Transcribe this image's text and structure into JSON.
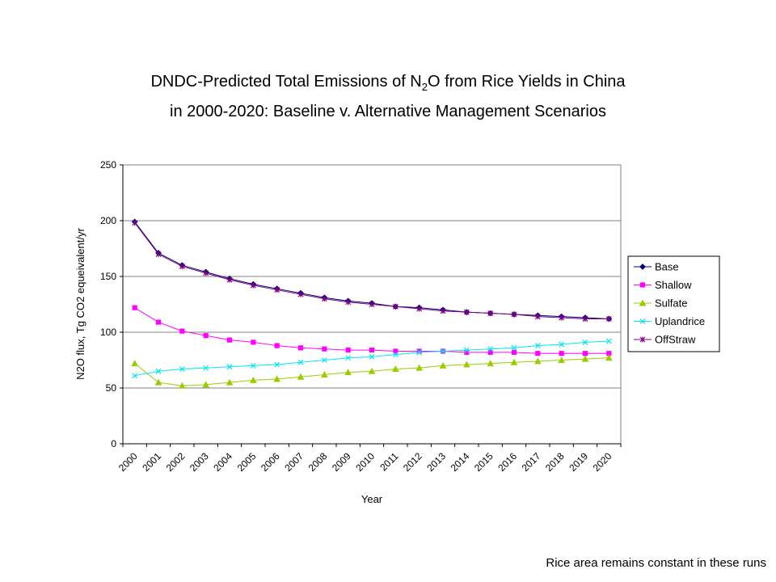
{
  "title": {
    "line1_before": "DNDC-Predicted Total Emissions of N",
    "line1_sub": "2",
    "line1_after": "O from Rice Yields in China",
    "line2": "in 2000-2020: Baseline v. Alternative Management Scenarios"
  },
  "footnote": "Rice area remains constant in these runs",
  "chart_data": {
    "type": "line",
    "title": "DNDC-Predicted Total Emissions of N2O from Rice Yields in China in 2000-2020: Baseline v. Alternative Management Scenarios",
    "xlabel": "Year",
    "ylabel": "N2O flux, Tg CO2 equeivalent/yr",
    "ylim": [
      0,
      250
    ],
    "yticks": [
      0,
      50,
      100,
      150,
      200,
      250
    ],
    "grid": true,
    "legend_position": "right",
    "categories": [
      "2000",
      "2001",
      "2002",
      "2003",
      "2004",
      "2005",
      "2006",
      "2007",
      "2008",
      "2009",
      "2010",
      "2011",
      "2012",
      "2013",
      "2014",
      "2015",
      "2016",
      "2017",
      "2018",
      "2019",
      "2020"
    ],
    "series": [
      {
        "name": "Base",
        "color": "#000080",
        "marker": "diamond",
        "values": [
          199,
          171,
          160,
          154,
          148,
          143,
          139,
          135,
          131,
          128,
          126,
          123,
          122,
          120,
          118,
          117,
          116,
          115,
          114,
          113,
          112
        ]
      },
      {
        "name": "Shallow",
        "color": "#ff00ff",
        "marker": "square",
        "values": [
          122,
          109,
          101,
          97,
          93,
          91,
          88,
          86,
          85,
          84,
          84,
          83,
          83,
          83,
          82,
          82,
          82,
          81,
          81,
          81,
          81
        ]
      },
      {
        "name": "Sulfate",
        "color": "#9acd00",
        "marker": "triangle",
        "values": [
          72,
          55,
          52,
          53,
          55,
          57,
          58,
          60,
          62,
          64,
          65,
          67,
          68,
          70,
          71,
          72,
          73,
          74,
          75,
          76,
          77
        ]
      },
      {
        "name": "Uplandrice",
        "color": "#00e5ee",
        "marker": "x",
        "values": [
          61,
          65,
          67,
          68,
          69,
          70,
          71,
          73,
          75,
          77,
          78,
          80,
          82,
          83,
          84,
          85,
          86,
          88,
          89,
          91,
          92
        ]
      },
      {
        "name": "OffStraw",
        "color": "#800080",
        "marker": "star",
        "values": [
          198,
          170,
          159,
          153,
          147,
          142,
          138,
          134,
          130,
          127,
          125,
          123,
          121,
          119,
          118,
          117,
          116,
          114,
          113,
          112,
          112
        ]
      }
    ]
  }
}
